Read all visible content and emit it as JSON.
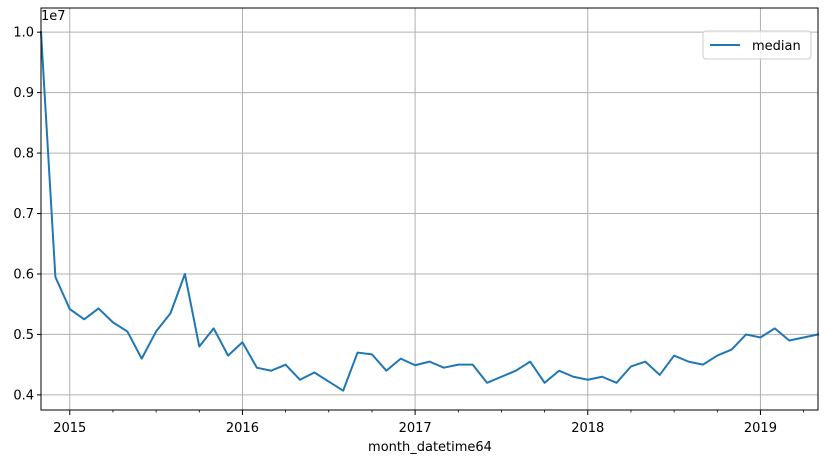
{
  "chart_data": {
    "type": "line",
    "title": "",
    "xlabel": "month_datetime64",
    "ylabel": "",
    "offset_label": "1e7",
    "grid": true,
    "legend_position": "top-right",
    "ylim": [
      0.375,
      1.04
    ],
    "x_range": [
      "2014-11",
      "2019-05"
    ],
    "x_tick_labels": [
      "2015",
      "2016",
      "2017",
      "2018",
      "2019"
    ],
    "y_ticks": [
      0.4,
      0.5,
      0.6,
      0.7,
      0.8,
      0.9,
      1.0
    ],
    "y_tick_labels": [
      "0.4",
      "0.5",
      "0.6",
      "0.7",
      "0.8",
      "0.9",
      "1.0"
    ],
    "line_color": "#1f77b4",
    "series": [
      {
        "name": "median",
        "x": [
          "2014-11",
          "2014-12",
          "2015-01",
          "2015-02",
          "2015-03",
          "2015-04",
          "2015-05",
          "2015-06",
          "2015-07",
          "2015-08",
          "2015-09",
          "2015-10",
          "2015-11",
          "2015-12",
          "2016-01",
          "2016-02",
          "2016-03",
          "2016-04",
          "2016-05",
          "2016-06",
          "2016-07",
          "2016-08",
          "2016-09",
          "2016-10",
          "2016-11",
          "2016-12",
          "2017-01",
          "2017-02",
          "2017-03",
          "2017-04",
          "2017-05",
          "2017-06",
          "2017-07",
          "2017-08",
          "2017-09",
          "2017-10",
          "2017-11",
          "2017-12",
          "2018-01",
          "2018-02",
          "2018-03",
          "2018-04",
          "2018-05",
          "2018-06",
          "2018-07",
          "2018-08",
          "2018-09",
          "2018-10",
          "2018-11",
          "2018-12",
          "2019-01",
          "2019-02",
          "2019-03",
          "2019-04",
          "2019-05"
        ],
        "values": [
          1.0,
          0.595,
          0.542,
          0.525,
          0.543,
          0.52,
          0.505,
          0.46,
          0.505,
          0.535,
          0.6,
          0.48,
          0.51,
          0.465,
          0.487,
          0.445,
          0.44,
          0.45,
          0.425,
          0.437,
          0.422,
          0.407,
          0.47,
          0.467,
          0.44,
          0.46,
          0.449,
          0.455,
          0.445,
          0.45,
          0.45,
          0.42,
          0.43,
          0.44,
          0.455,
          0.42,
          0.44,
          0.43,
          0.425,
          0.43,
          0.42,
          0.447,
          0.455,
          0.433,
          0.465,
          0.455,
          0.45,
          0.465,
          0.475,
          0.5,
          0.495,
          0.51,
          0.49,
          0.495,
          0.5
        ]
      }
    ]
  }
}
